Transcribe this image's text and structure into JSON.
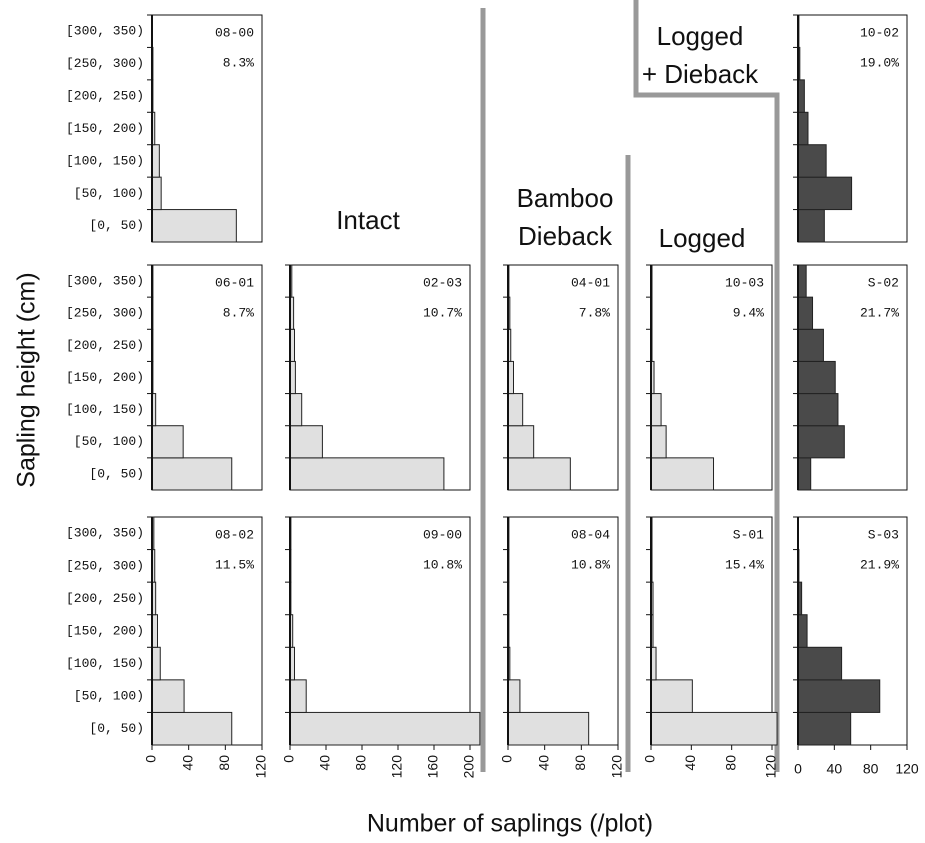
{
  "figure": {
    "ylabel": "Sapling height (cm)",
    "xlabel": "Number of saplings (/plot)",
    "groups": [
      {
        "lines": [
          "Intact"
        ]
      },
      {
        "lines": [
          "Bamboo",
          "Dieback"
        ]
      },
      {
        "lines": [
          "Logged"
        ]
      },
      {
        "lines": [
          "Logged",
          "+ Dieback"
        ]
      }
    ]
  },
  "chart_data": [
    {
      "type": "bar",
      "orientation": "horizontal",
      "label": "08-00",
      "annotation": "8.3%",
      "categories": [
        "[0, 50)",
        "[50, 100)",
        "[100, 150)",
        "[150, 200)",
        "[200, 250)",
        "[250, 300)",
        "[300, 350)"
      ],
      "values": [
        92,
        10,
        8,
        3,
        1,
        1,
        0
      ],
      "color": "#e0e0e0",
      "xlim": [
        0,
        120
      ]
    },
    {
      "type": "bar",
      "orientation": "horizontal",
      "label": "06-01",
      "annotation": "8.7%",
      "categories": [
        "[0, 50)",
        "[50, 100)",
        "[100, 150)",
        "[150, 200)",
        "[200, 250)",
        "[250, 300)",
        "[300, 350)"
      ],
      "values": [
        87,
        34,
        4,
        1,
        1,
        1,
        1
      ],
      "color": "#e0e0e0",
      "xlim": [
        0,
        120
      ]
    },
    {
      "type": "bar",
      "orientation": "horizontal",
      "label": "08-02",
      "annotation": "11.5%",
      "categories": [
        "[0, 50)",
        "[50, 100)",
        "[100, 150)",
        "[150, 200)",
        "[200, 250)",
        "[250, 300)",
        "[300, 350)"
      ],
      "values": [
        87,
        35,
        9,
        6,
        4,
        3,
        2
      ],
      "color": "#e0e0e0",
      "xlim": [
        0,
        120
      ],
      "xticks": [
        0,
        40,
        80,
        120
      ]
    },
    {
      "type": "bar",
      "orientation": "horizontal",
      "label": "02-03",
      "annotation": "10.7%",
      "values": [
        171,
        36,
        13,
        6,
        5,
        4,
        2
      ],
      "color": "#e0e0e0",
      "xlim": [
        0,
        200
      ]
    },
    {
      "type": "bar",
      "orientation": "horizontal",
      "label": "09-00",
      "annotation": "10.8%",
      "values": [
        211,
        18,
        5,
        3,
        1,
        1,
        1
      ],
      "color": "#e0e0e0",
      "xlim": [
        0,
        200
      ],
      "xticks": [
        0,
        40,
        80,
        120,
        160,
        200
      ]
    },
    {
      "type": "bar",
      "orientation": "horizontal",
      "label": "04-01",
      "annotation": "7.8%",
      "values": [
        68,
        28,
        16,
        6,
        3,
        2,
        1
      ],
      "color": "#e0e0e0",
      "xlim": [
        0,
        120
      ]
    },
    {
      "type": "bar",
      "orientation": "horizontal",
      "label": "08-04",
      "annotation": "10.8%",
      "values": [
        88,
        13,
        2,
        1,
        1,
        1,
        1
      ],
      "color": "#e0e0e0",
      "xlim": [
        0,
        120
      ],
      "xticks": [
        0,
        40,
        80,
        120
      ]
    },
    {
      "type": "bar",
      "orientation": "horizontal",
      "label": "10-03",
      "annotation": "9.4%",
      "values": [
        62,
        15,
        10,
        3,
        1,
        1,
        1
      ],
      "color": "#e0e0e0",
      "xlim": [
        0,
        120
      ]
    },
    {
      "type": "bar",
      "orientation": "horizontal",
      "label": "S-01",
      "annotation": "15.4%",
      "values": [
        125,
        41,
        5,
        2,
        2,
        1,
        1
      ],
      "color": "#e0e0e0",
      "xlim": [
        0,
        120
      ],
      "xticks": [
        0,
        40,
        80,
        120
      ]
    },
    {
      "type": "bar",
      "orientation": "horizontal",
      "label": "10-02",
      "annotation": "19.0%",
      "values": [
        29,
        59,
        31,
        11,
        7,
        2,
        1
      ],
      "color": "#4a4a4a",
      "xlim": [
        0,
        120
      ]
    },
    {
      "type": "bar",
      "orientation": "horizontal",
      "label": "S-02",
      "annotation": "21.7%",
      "values": [
        14,
        51,
        44,
        41,
        28,
        16,
        9
      ],
      "color": "#4a4a4a",
      "xlim": [
        0,
        120
      ]
    },
    {
      "type": "bar",
      "orientation": "horizontal",
      "label": "S-03",
      "annotation": "21.9%",
      "values": [
        58,
        90,
        48,
        10,
        4,
        1,
        0
      ],
      "color": "#4a4a4a",
      "xlim": [
        0,
        120
      ],
      "xticks": [
        0,
        40,
        80,
        120
      ]
    }
  ]
}
